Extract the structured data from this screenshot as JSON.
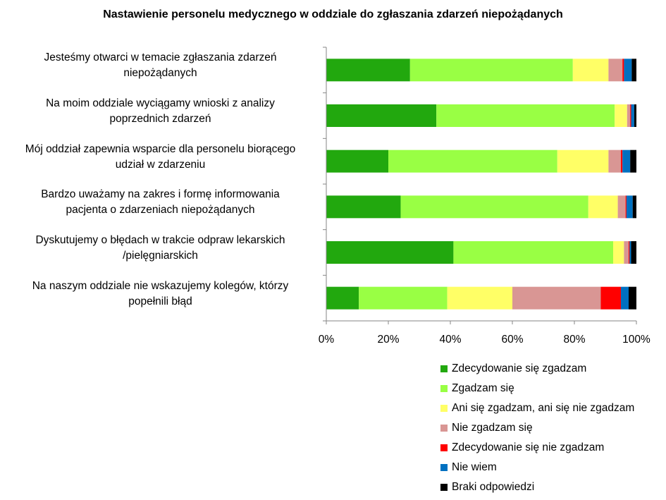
{
  "chart_data": {
    "type": "bar",
    "orientation": "horizontal",
    "stacked": "percent",
    "title": "Nastawienie personelu medycznego w oddziale do zgłaszania zdarzeń niepożądanych",
    "xlabel": "",
    "ylabel": "",
    "xlim": [
      0,
      100
    ],
    "xticks": [
      "0%",
      "20%",
      "40%",
      "60%",
      "80%",
      "100%"
    ],
    "grid": false,
    "legend_position": "bottom-right",
    "categories": [
      "Jesteśmy otwarci w temacie zgłaszania zdarzeń niepożądanych",
      "Na moim oddziale wyciągamy wnioski z analizy poprzednich zdarzeń",
      "Mój oddział zapewnia wsparcie dla personelu biorącego udział w zdarzeniu",
      "Bardzo uważamy na zakres i formę informowania pacjenta o zdarzeniach niepożądanych",
      "Dyskutujemy o błędach w trakcie odpraw lekarskich /pielęgniarskich",
      "Na naszym oddziale nie wskazujemy kolegów, którzy popełnili błąd"
    ],
    "category_lines": [
      [
        "Jesteśmy otwarci w temacie zgłaszania zdarzeń",
        "niepożądanych"
      ],
      [
        "Na moim oddziale wyciągamy wnioski z analizy",
        "poprzednich zdarzeń"
      ],
      [
        "Mój oddział zapewnia wsparcie dla personelu biorącego",
        "udział w zdarzeniu"
      ],
      [
        "Bardzo uważamy na zakres i formę informowania",
        "pacjenta o zdarzeniach niepożądanych"
      ],
      [
        "Dyskutujemy o błędach w trakcie odpraw lekarskich",
        "/pielęgniarskich"
      ],
      [
        "Na naszym oddziale nie wskazujemy kolegów, którzy",
        "popełnili błąd"
      ]
    ],
    "series": [
      {
        "name": "Zdecydowanie się zgadzam",
        "color": "#22a80e",
        "values": [
          27.0,
          35.5,
          20.0,
          24.0,
          41.0,
          10.5
        ]
      },
      {
        "name": "Zgadzam się",
        "color": "#99ff44",
        "values": [
          52.5,
          57.5,
          54.5,
          60.5,
          51.5,
          28.5
        ]
      },
      {
        "name": "Ani się zgadzam, ani się nie zgadzam",
        "color": "#ffff66",
        "values": [
          11.5,
          4.0,
          16.5,
          9.5,
          3.5,
          21.0
        ]
      },
      {
        "name": "Nie zgadzam się",
        "color": "#d99694",
        "values": [
          4.5,
          1.0,
          4.0,
          2.5,
          1.5,
          28.5
        ]
      },
      {
        "name": "Zdecydowanie się nie zgadzam",
        "color": "#ff0000",
        "values": [
          0.5,
          0.3,
          0.5,
          0.3,
          0.3,
          6.5
        ]
      },
      {
        "name": "Nie wiem",
        "color": "#0070c0",
        "values": [
          2.5,
          1.0,
          2.5,
          2.0,
          0.5,
          2.5
        ]
      },
      {
        "name": "Braki odpowiedzi",
        "color": "#000000",
        "values": [
          1.5,
          0.7,
          2.0,
          1.2,
          1.7,
          2.5
        ]
      }
    ]
  }
}
